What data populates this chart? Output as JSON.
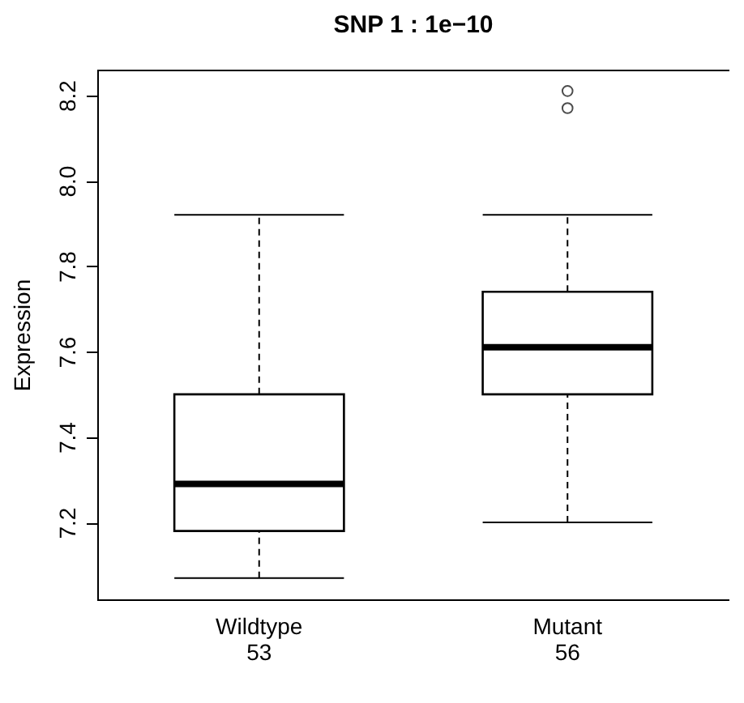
{
  "chart_data": {
    "type": "box",
    "title": "SNP 1 : 1e−10",
    "ylabel": "Expression",
    "categories": [
      "Wildtype\n53",
      "Mutant\n56"
    ],
    "boxes": [
      {
        "low": 7.07,
        "q1": 7.18,
        "median": 7.29,
        "q3": 7.5,
        "high": 7.92
      },
      {
        "low": 7.2,
        "q1": 7.5,
        "median": 7.61,
        "q3": 7.74,
        "high": 7.92,
        "outliers": [
          8.17,
          8.21
        ]
      }
    ],
    "ylim": [
      7.02,
      8.26
    ],
    "yticks": [
      7.2,
      7.4,
      7.6,
      7.8,
      {
        "value": 8,
        "label": "8.0"
      },
      8.2
    ],
    "grid": false
  }
}
